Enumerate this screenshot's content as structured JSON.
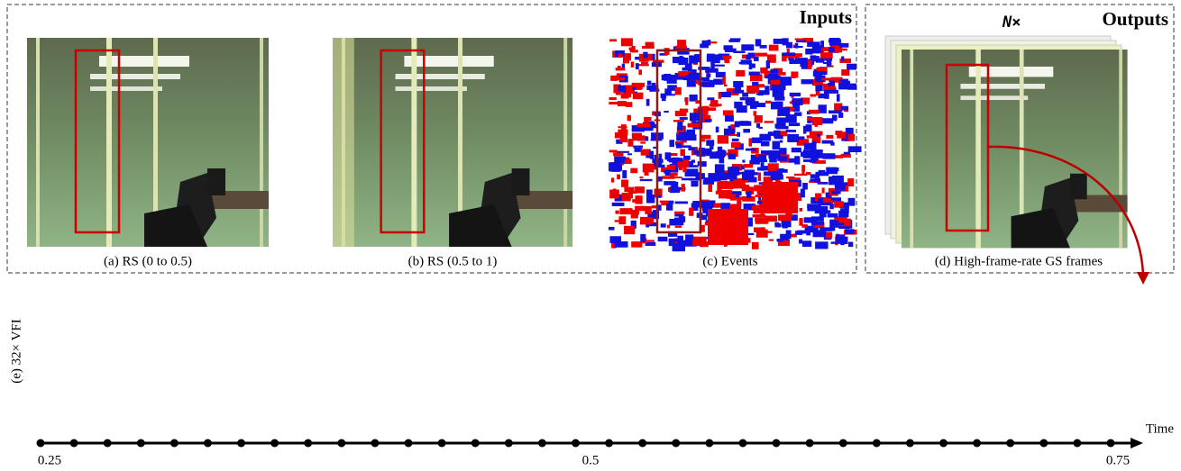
{
  "inputs_label": "Inputs",
  "outputs_label": "Outputs",
  "multiplier": "N×",
  "panels": [
    {
      "caption": "(a) RS (0 to 0.5)"
    },
    {
      "caption": "(b) RS (0.5 to 1)"
    },
    {
      "caption": "(c) Events"
    },
    {
      "caption": "(d) High-frame-rate GS frames"
    }
  ],
  "strip_label": "(e) 32× VFI",
  "timeline": {
    "label": "Time",
    "ticks": [
      "0.25",
      "0.5",
      "0.75"
    ]
  }
}
